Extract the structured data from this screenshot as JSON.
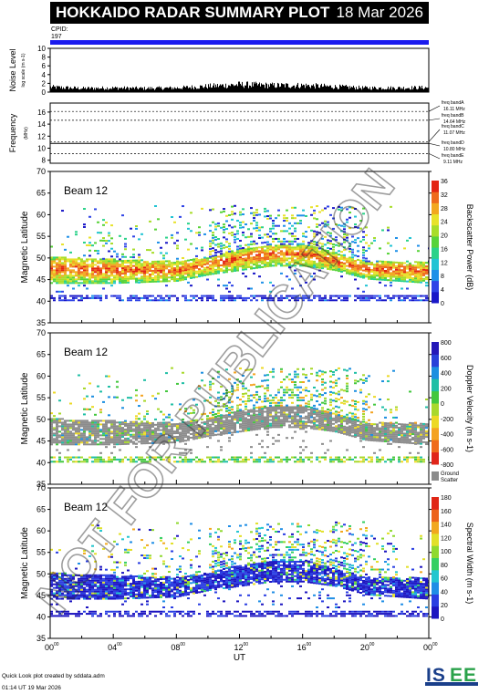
{
  "title": "HOKKAIDO RADAR SUMMARY PLOT",
  "date": "18 Mar 2026",
  "cpid_label": "CPID:",
  "cpid_value": "197",
  "noise_panel": {
    "ylabel": "Noise Level",
    "ylabel_sub": "log scale (m s-1)",
    "ticks": [
      "0",
      "2",
      "4",
      "6",
      "8",
      "10"
    ],
    "ylim": [
      0,
      10
    ]
  },
  "frequency_panel": {
    "ylabel": "Frequency",
    "unit": "(MHz)",
    "ticks": [
      "8",
      "10",
      "12",
      "14",
      "16"
    ],
    "ylim": [
      7.5,
      17.5
    ],
    "bands": [
      {
        "label": "freq bandA",
        "value": "16.11 MHz",
        "freq": 16.11
      },
      {
        "label": "freq bandB",
        "value": "14.64 MHz",
        "freq": 14.64
      },
      {
        "label": "freq bandC",
        "value": "11.07 MHz",
        "freq": 11.07
      },
      {
        "label": "freq bandD",
        "value": "10.80 MHz",
        "freq": 10.8
      },
      {
        "label": "freq bandE",
        "value": "9.11 MHz",
        "freq": 9.11
      }
    ]
  },
  "panels": [
    {
      "beam": "Beam 12",
      "ylabel": "Magnetic Latitude",
      "colorbar_label": "Backscatter Power (dB)",
      "colorbar_ticks": [
        "0",
        "4",
        "8",
        "12",
        "16",
        "20",
        "24",
        "28",
        "32",
        "36"
      ],
      "colorbar_colors": [
        "#1a18c8",
        "#2f44e6",
        "#1f90e8",
        "#22c4d4",
        "#2bd28a",
        "#58d33a",
        "#a8dd2a",
        "#e8e22a",
        "#f2a71f",
        "#ee6a1c",
        "#e32512"
      ],
      "kind": "power"
    },
    {
      "beam": "Beam 12",
      "ylabel": "Magnetic Latitude",
      "colorbar_label": "Doppler Velocity (m s-1)",
      "colorbar_ticks": [
        "-800",
        "-600",
        "-400",
        "-200",
        "0",
        "200",
        "400",
        "600",
        "800"
      ],
      "colorbar_colors": [
        "#e0261a",
        "#ef6b1c",
        "#f4a321",
        "#ecd925",
        "#a8d82c",
        "#43c73e",
        "#1fbfa5",
        "#1c8fe0",
        "#2841d9",
        "#2418b8"
      ],
      "ground_scatter_label": "Ground Scatter",
      "kind": "velocity"
    },
    {
      "beam": "Beam 12",
      "ylabel": "Magnetic Latitude",
      "colorbar_label": "Spectral Width (m s-1)",
      "colorbar_ticks": [
        "0",
        "20",
        "40",
        "60",
        "80",
        "100",
        "120",
        "140",
        "160",
        "180"
      ],
      "colorbar_colors": [
        "#1c14c0",
        "#2a3ee2",
        "#1f8ee6",
        "#22c6cf",
        "#35cf63",
        "#8fd92f",
        "#e2e02a",
        "#f1a820",
        "#ec621b",
        "#e02616"
      ],
      "kind": "width"
    }
  ],
  "lat_ticks": [
    "35",
    "40",
    "45",
    "50",
    "55",
    "60",
    "65",
    "70"
  ],
  "lat_range": [
    35,
    70
  ],
  "time_ticks": [
    "00",
    "04",
    "08",
    "12",
    "16",
    "20",
    "00"
  ],
  "time_sup": "00",
  "xlabel": "UT",
  "watermark": "NOT FOR PUBLICATION",
  "footer_note": "Quick Look plot created by sddata.adm",
  "footer_time": "01:14 UT 19 Mar 2026",
  "logo_text": "ISEE",
  "chart_data": [
    {
      "type": "line",
      "title": "Noise Level",
      "x_unit": "UT hours",
      "xlim": [
        0,
        24
      ],
      "ylim": [
        0,
        10
      ],
      "x": [
        0,
        2,
        4,
        6,
        8,
        10,
        12,
        14,
        16,
        18,
        20,
        22,
        24
      ],
      "values": [
        1.2,
        0.9,
        1.0,
        0.9,
        1.0,
        1.4,
        1.8,
        1.6,
        1.6,
        1.3,
        1.0,
        1.0,
        1.1
      ]
    },
    {
      "type": "line",
      "title": "Frequency",
      "x_unit": "UT hours",
      "xlim": [
        0,
        24
      ],
      "ylim": [
        7.5,
        17.5
      ],
      "series": [
        {
          "name": "freq bandA",
          "values": [
            16.11
          ]
        },
        {
          "name": "freq bandB",
          "values": [
            14.64
          ]
        },
        {
          "name": "freq bandC",
          "values": [
            11.07
          ]
        },
        {
          "name": "freq bandD",
          "values": [
            10.8
          ]
        },
        {
          "name": "freq bandE",
          "values": [
            9.11
          ]
        }
      ]
    },
    {
      "type": "heatmap",
      "title": "Beam 12 Backscatter Power (dB)",
      "x_unit": "UT hours",
      "xlim": [
        0,
        24
      ],
      "ylim": [
        35,
        70
      ],
      "zlim": [
        0,
        36
      ],
      "features": [
        {
          "name": "main echo band",
          "x": [
            0,
            4,
            8,
            10,
            12,
            14,
            16,
            18,
            20,
            24
          ],
          "lat_low": [
            44,
            44,
            44.5,
            46,
            47,
            48,
            48,
            47,
            45,
            44
          ],
          "lat_high": [
            50,
            49.5,
            49,
            50,
            52,
            53,
            53,
            51,
            49,
            49
          ]
        },
        {
          "name": "low latitude band",
          "x": [
            0,
            24
          ],
          "lat_low": [
            40,
            40
          ],
          "lat_high": [
            41.5,
            41.5
          ]
        }
      ]
    }
  ]
}
